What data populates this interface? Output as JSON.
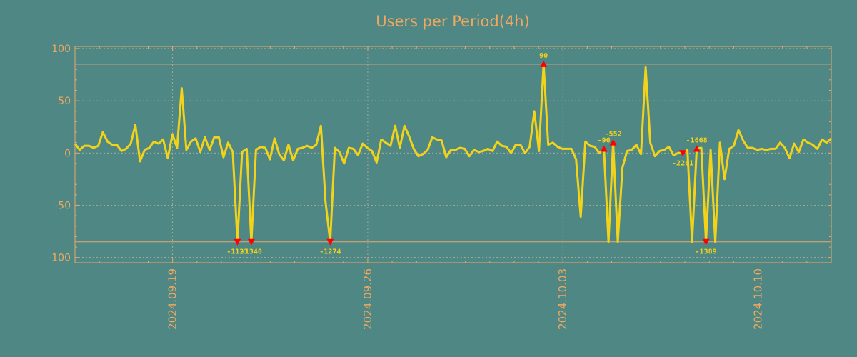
{
  "colors": {
    "background": "#4e8784",
    "text": "#f0a860",
    "line": "#f2d31a",
    "marker": "#ff0000",
    "grid": "#b9b49c",
    "frame": "#e8a86c"
  },
  "chart_data": {
    "type": "line",
    "title": "Users per Period(4h)",
    "xlabel": "",
    "ylabel": "",
    "ylim": [
      -105,
      102
    ],
    "yticks": [
      100,
      50,
      0,
      -50,
      -100
    ],
    "ytick_labels": [
      "100",
      "50",
      "0",
      "-50",
      "-100"
    ],
    "xlim_days": [
      0,
      7.75
    ],
    "xticks": [
      {
        "label": "2024.09.19",
        "day": 1
      },
      {
        "label": "2024.09.26",
        "day": 3
      },
      {
        "label": "2024.10.03",
        "day": 5
      },
      {
        "label": "2024.10.10",
        "day": 7
      }
    ],
    "minor_step_days": 0.25,
    "period_hours": 4,
    "clip_limits": [
      85,
      -85
    ],
    "series": [
      {
        "name": "Users",
        "values": [
          9,
          3,
          7,
          7,
          5,
          7,
          20,
          11,
          8,
          8,
          2,
          4,
          9,
          27,
          -8,
          3,
          5,
          11,
          9,
          13,
          -5,
          18,
          5,
          62,
          3,
          11,
          14,
          1,
          15,
          3,
          15,
          15,
          -4,
          10,
          1,
          -85,
          1,
          4,
          -85,
          3,
          6,
          5,
          -6,
          14,
          -1,
          -7,
          8,
          -7,
          4,
          5,
          7,
          5,
          8,
          26,
          -47,
          -85,
          5,
          1,
          -10,
          5,
          4,
          -2,
          9,
          5,
          2,
          -9,
          13,
          10,
          7,
          26,
          5,
          26,
          16,
          4,
          -3,
          -1,
          3,
          15,
          13,
          12,
          -4,
          3,
          3,
          5,
          4,
          -3,
          3,
          1,
          2,
          4,
          2,
          11,
          7,
          6,
          0,
          8,
          8,
          0,
          6,
          40,
          2,
          85,
          8,
          10,
          6,
          4,
          4,
          4,
          -6,
          -61,
          11,
          7,
          6,
          0,
          4,
          -85,
          10,
          -85,
          -14,
          2,
          3,
          8,
          -1,
          82,
          10,
          -3,
          2,
          3,
          6,
          -2,
          0,
          0,
          3,
          -85,
          4,
          5,
          -85,
          3,
          -85,
          10,
          -25,
          4,
          7,
          22,
          12,
          5,
          5,
          3,
          4,
          3,
          4,
          4,
          10,
          5,
          -5,
          9,
          1,
          13,
          10,
          8,
          4,
          13,
          10,
          14
        ]
      }
    ],
    "annotations": [
      {
        "index": 35,
        "text": "-1123"
      },
      {
        "index": 38,
        "text": "-1340"
      },
      {
        "index": 55,
        "text": "-1274"
      },
      {
        "index": 101,
        "text": "90"
      },
      {
        "index": 114,
        "text": "-96"
      },
      {
        "index": 116,
        "text": "-552"
      },
      {
        "index": 131,
        "text": "-2261"
      },
      {
        "index": 134,
        "text": "-1668"
      },
      {
        "index": 136,
        "text": "-1389"
      }
    ]
  }
}
